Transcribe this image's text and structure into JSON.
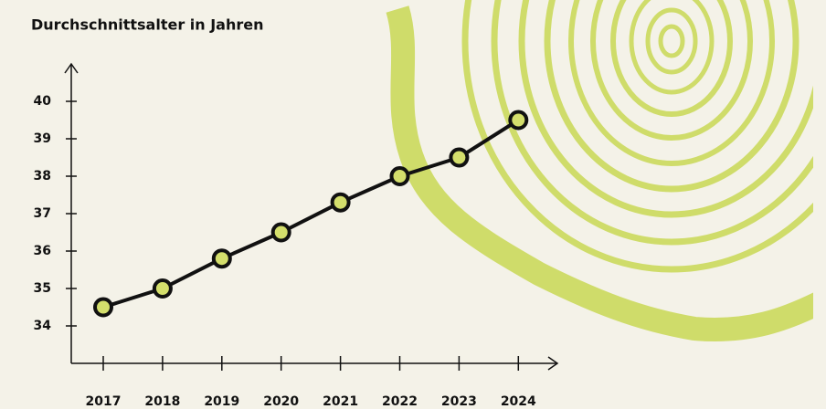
{
  "chart_data": {
    "type": "line",
    "title": "Durchschnittsalter in Jahren",
    "categories": [
      "2017",
      "2018",
      "2019",
      "2020",
      "2021",
      "2022",
      "2023",
      "2024"
    ],
    "values": [
      34.5,
      35.0,
      35.8,
      36.5,
      37.3,
      38.0,
      38.5,
      39.5
    ],
    "color": "#111111",
    "marker_color": "#d4df6c",
    "ylim": [
      33,
      41
    ],
    "yticks": [
      34,
      35,
      36,
      37,
      38,
      39,
      40
    ]
  }
}
